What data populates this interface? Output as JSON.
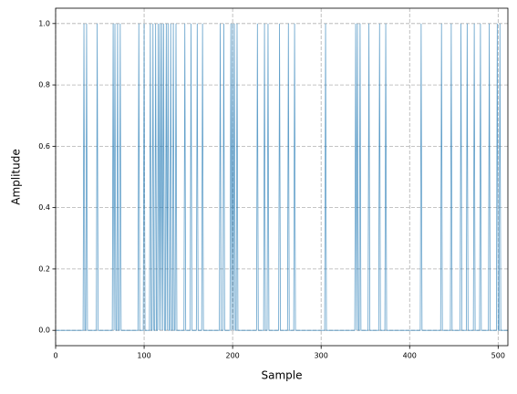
{
  "chart_data": {
    "type": "line",
    "xlabel": "Sample",
    "ylabel": "Amplitude",
    "color": "#1f77b4",
    "grid": true,
    "xlim": [
      0,
      511
    ],
    "ylim": [
      -0.05,
      1.05
    ],
    "xticks": [
      0,
      100,
      200,
      300,
      400,
      500
    ],
    "yticks": [
      {
        "value": 0,
        "label": "0.0"
      },
      {
        "value": 0.2,
        "label": "0.2"
      },
      {
        "value": 0.4,
        "label": "0.4"
      },
      {
        "value": 0.6,
        "label": "0.6"
      },
      {
        "value": 0.8,
        "label": "0.8"
      },
      {
        "value": 1,
        "label": "1.0"
      }
    ],
    "values": [
      0,
      0,
      0,
      0,
      0,
      0,
      0,
      0,
      0,
      0,
      0,
      0,
      0,
      0,
      0,
      0,
      0,
      0,
      0,
      0,
      0,
      0,
      0,
      0,
      0,
      0,
      0,
      0,
      0,
      0,
      0,
      0,
      1,
      0,
      0,
      1,
      0,
      0,
      0,
      0,
      0,
      0,
      0,
      0,
      0,
      0,
      0,
      1,
      0,
      0,
      0,
      0,
      0,
      0,
      0,
      0,
      0,
      0,
      0,
      0,
      0,
      0,
      0,
      0,
      0,
      1,
      0,
      1,
      0,
      0,
      1,
      0,
      0,
      1,
      0,
      0,
      0,
      0,
      0,
      0,
      0,
      0,
      0,
      0,
      0,
      0,
      0,
      0,
      0,
      0,
      0,
      0,
      0,
      0,
      1,
      0,
      0,
      0,
      0,
      0,
      1,
      0,
      0,
      0,
      0,
      0,
      0,
      1,
      0,
      0,
      1,
      0,
      0,
      1,
      0,
      0,
      1,
      0,
      1,
      0,
      1,
      0,
      1,
      0,
      0,
      1,
      0,
      1,
      0,
      0,
      1,
      0,
      0,
      1,
      0,
      0,
      1,
      0,
      0,
      0,
      0,
      0,
      0,
      0,
      0,
      0,
      1,
      0,
      0,
      0,
      0,
      0,
      0,
      1,
      0,
      0,
      0,
      0,
      0,
      0,
      1,
      0,
      0,
      0,
      0,
      0,
      1,
      0,
      0,
      0,
      0,
      0,
      0,
      0,
      0,
      0,
      0,
      0,
      0,
      0,
      0,
      0,
      0,
      0,
      0,
      0,
      1,
      0,
      0,
      0,
      1,
      0,
      0,
      0,
      0,
      0,
      0,
      0,
      1,
      0,
      1,
      0,
      1,
      0,
      0,
      1,
      0,
      0,
      0,
      0,
      0,
      0,
      0,
      0,
      0,
      0,
      0,
      0,
      0,
      0,
      0,
      0,
      0,
      0,
      0,
      0,
      0,
      0,
      1,
      0,
      0,
      0,
      0,
      0,
      0,
      0,
      1,
      0,
      0,
      0,
      1,
      0,
      0,
      0,
      0,
      0,
      0,
      0,
      0,
      0,
      0,
      0,
      0,
      1,
      0,
      0,
      0,
      0,
      0,
      0,
      0,
      0,
      0,
      1,
      0,
      0,
      0,
      0,
      0,
      0,
      1,
      0,
      0,
      0,
      0,
      0,
      0,
      0,
      0,
      0,
      0,
      0,
      0,
      0,
      0,
      0,
      0,
      0,
      0,
      0,
      0,
      0,
      0,
      0,
      0,
      0,
      0,
      0,
      0,
      0,
      0,
      0,
      0,
      0,
      0,
      1,
      0,
      0,
      0,
      0,
      0,
      0,
      0,
      0,
      0,
      0,
      0,
      0,
      0,
      0,
      0,
      0,
      0,
      0,
      0,
      0,
      0,
      0,
      0,
      0,
      0,
      0,
      0,
      0,
      0,
      0,
      0,
      0,
      0,
      1,
      0,
      1,
      0,
      0,
      1,
      0,
      0,
      0,
      0,
      0,
      0,
      0,
      0,
      0,
      1,
      0,
      0,
      0,
      0,
      0,
      0,
      0,
      0,
      0,
      0,
      0,
      1,
      0,
      0,
      0,
      0,
      0,
      0,
      1,
      0,
      0,
      0,
      0,
      0,
      0,
      0,
      0,
      0,
      0,
      0,
      0,
      0,
      0,
      0,
      0,
      0,
      0,
      0,
      0,
      0,
      0,
      0,
      0,
      0,
      0,
      0,
      0,
      0,
      0,
      0,
      0,
      0,
      0,
      0,
      0,
      0,
      0,
      0,
      1,
      0,
      0,
      0,
      0,
      0,
      0,
      0,
      0,
      0,
      0,
      0,
      0,
      0,
      0,
      0,
      0,
      0,
      0,
      0,
      0,
      0,
      0,
      1,
      0,
      0,
      0,
      0,
      0,
      0,
      0,
      0,
      0,
      0,
      1,
      0,
      0,
      0,
      0,
      0,
      0,
      0,
      0,
      0,
      0,
      1,
      0,
      0,
      0,
      0,
      0,
      0,
      1,
      0,
      0,
      0,
      0,
      0,
      0,
      0,
      1,
      0,
      0,
      0,
      0,
      0,
      0,
      1,
      0,
      0,
      0,
      0,
      0,
      0,
      0,
      0,
      0,
      1,
      0,
      0,
      0,
      0,
      0,
      0,
      0,
      0,
      1,
      0,
      0,
      1,
      0,
      0,
      0,
      0,
      0,
      0,
      0,
      0,
      0
    ]
  }
}
